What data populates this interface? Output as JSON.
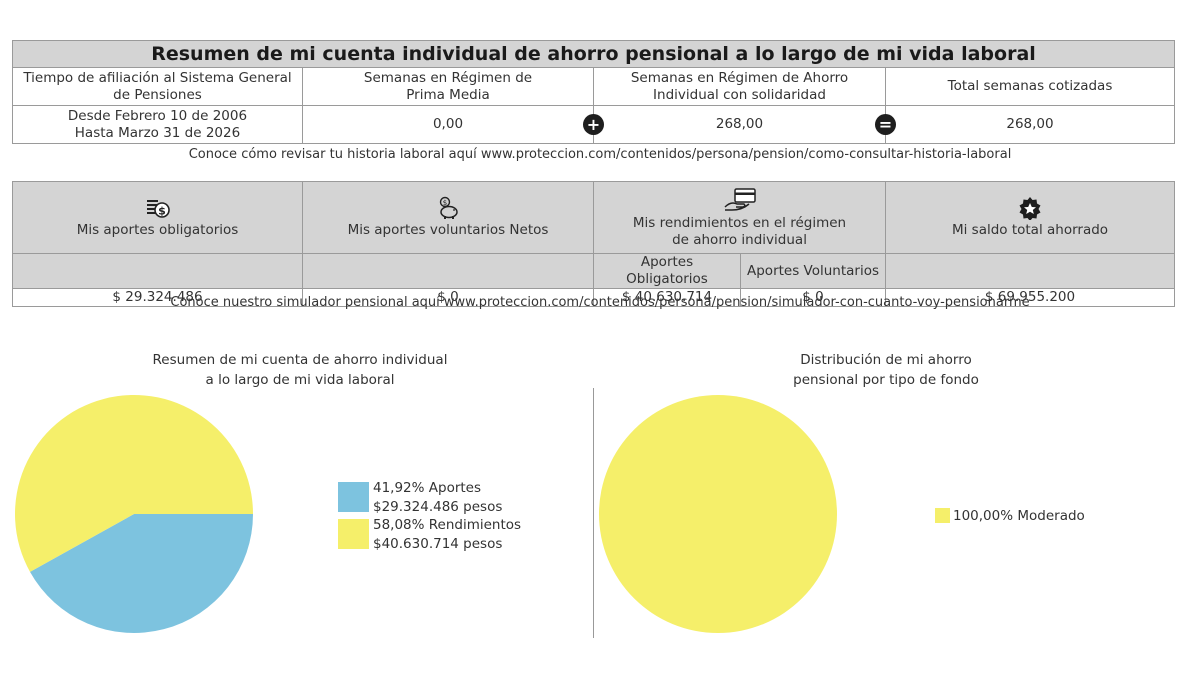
{
  "summary_table": {
    "title": "Resumen de mi cuenta individual de ahorro pensional a lo largo de mi vida laboral",
    "headers": {
      "affiliation_time": [
        "Tiempo de afiliación al Sistema General",
        "de Pensiones"
      ],
      "prima_media": [
        "Semanas en Régimen de",
        "Prima Media"
      ],
      "ahorro_individual": [
        "Semanas en Régimen de Ahorro",
        "Individual con solidaridad"
      ],
      "total": "Total semanas cotizadas"
    },
    "values": {
      "affiliation_period": [
        "Desde Febrero 10 de 2006",
        "Hasta Marzo 31 de 2026"
      ],
      "prima_media": "0,00",
      "ahorro_individual": "268,00",
      "total": "268,00"
    },
    "operators": {
      "plus": "+",
      "equals": "="
    }
  },
  "history_note": "Conoce cómo revisar tu historia laboral aquí www.proteccion.com/contenidos/persona/pension/como-consultar-historia-laboral",
  "balance_table": {
    "headers": {
      "obligatorios": "Mis aportes obligatorios",
      "voluntarios": "Mis aportes voluntarios Netos",
      "rendimientos": [
        "Mis rendimientos en el régimen",
        "de ahorro individual"
      ],
      "saldo": "Mi saldo total ahorrado"
    },
    "subheaders": {
      "rend_obligatorios": "Aportes Obligatorios",
      "rend_voluntarios": "Aportes Voluntarios"
    },
    "values": {
      "obligatorios": "$ 29.324.486",
      "voluntarios": "$ 0",
      "rend_obligatorios": "$ 40.630.714",
      "rend_voluntarios": "$ 0",
      "saldo": "$ 69.955.200"
    },
    "icons": [
      "money-stack-icon",
      "piggy-bank-icon",
      "hand-card-icon",
      "star-badge-icon"
    ]
  },
  "simulator_note": "Conoce nuestro simulador pensional aquí www.proteccion.com/contenidos/persona/pension/simulador-con-cuanto-voy-pensionarme",
  "chart_data": [
    {
      "type": "pie",
      "title": [
        "Resumen de mi cuenta de ahorro individual",
        "a lo largo de mi vida laboral"
      ],
      "slices": [
        {
          "label": "41,92% Aportes",
          "sub": "$29.324.486 pesos",
          "value": 41.92,
          "color": "#7dc3df"
        },
        {
          "label": "58,08% Rendimientos",
          "sub": "$40.630.714 pesos",
          "value": 58.08,
          "color": "#f5ef6a"
        }
      ],
      "legend": "right"
    },
    {
      "type": "pie",
      "title": [
        "Distribución de mi ahorro",
        "pensional por tipo de fondo"
      ],
      "slices": [
        {
          "label": "100,00% Moderado",
          "value": 100.0,
          "color": "#f5ef6a"
        }
      ],
      "legend": "right"
    }
  ]
}
